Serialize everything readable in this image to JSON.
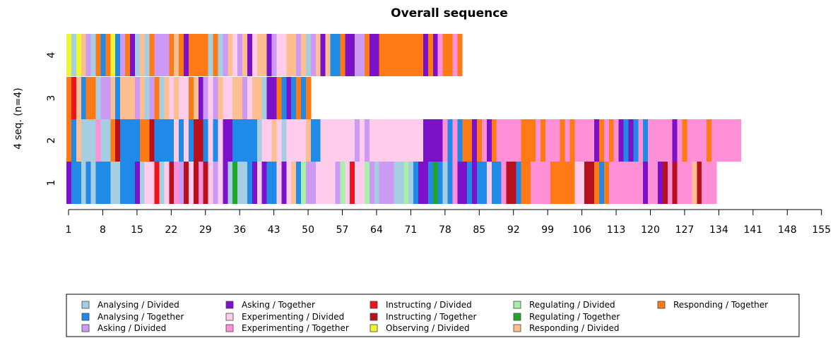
{
  "chart_data": {
    "type": "sequence_index_plot",
    "title": "Overall sequence",
    "ylabel": "4 seq. (n=4)",
    "xlabel": "",
    "y_tick_labels": [
      "1",
      "2",
      "3",
      "4"
    ],
    "x_tick_labels": [
      "1",
      "8",
      "15",
      "22",
      "29",
      "36",
      "43",
      "50",
      "57",
      "64",
      "71",
      "78",
      "85",
      "92",
      "99",
      "106",
      "113",
      "120",
      "127",
      "134",
      "141",
      "148",
      "155"
    ],
    "x_positions": 157,
    "states": [
      {
        "code": "AD",
        "label": "Analysing / Divided",
        "color": "#A6CEE3"
      },
      {
        "code": "AT",
        "label": "Analysing / Together",
        "color": "#1F8AE8"
      },
      {
        "code": "KD",
        "label": "Asking / Divided",
        "color": "#CC99F5"
      },
      {
        "code": "KT",
        "label": "Asking / Together",
        "color": "#7B12C9"
      },
      {
        "code": "ED",
        "label": "Experimenting / Divided",
        "color": "#FFCCEB"
      },
      {
        "code": "ET",
        "label": "Experimenting / Together",
        "color": "#FF8FD6"
      },
      {
        "code": "ID",
        "label": "Instructing / Divided",
        "color": "#F0141A"
      },
      {
        "code": "IT",
        "label": "Instructing / Together",
        "color": "#B8101C"
      },
      {
        "code": "OD",
        "label": "Observing / Divided",
        "color": "#EEF531"
      },
      {
        "code": "GD",
        "label": "Regulating / Divided",
        "color": "#A8F0A8"
      },
      {
        "code": "GT",
        "label": "Regulating / Together",
        "color": "#22A626"
      },
      {
        "code": "RD",
        "label": "Responding / Divided",
        "color": "#FDBF8F"
      },
      {
        "code": "RT",
        "label": "Responding / Together",
        "color": "#FF7A14"
      }
    ],
    "sequences": [
      {
        "name": "1",
        "runs": [
          [
            "KT",
            1
          ],
          [
            "AT",
            2
          ],
          [
            "AD",
            1
          ],
          [
            "AT",
            1
          ],
          [
            "AD",
            1
          ],
          [
            "AT",
            3
          ],
          [
            "AD",
            2
          ],
          [
            "AT",
            3
          ],
          [
            "KT",
            1
          ],
          [
            "AD",
            1
          ],
          [
            "ED",
            2
          ],
          [
            "ID",
            1
          ],
          [
            "AD",
            1
          ],
          [
            "ED",
            1
          ],
          [
            "IT",
            1
          ],
          [
            "ET",
            1
          ],
          [
            "KD",
            1
          ],
          [
            "IT",
            1
          ],
          [
            "ED",
            1
          ],
          [
            "IT",
            1
          ],
          [
            "ET",
            1
          ],
          [
            "IT",
            1
          ],
          [
            "ED",
            1
          ],
          [
            "KD",
            1
          ],
          [
            "ED",
            1
          ],
          [
            "KT",
            1
          ],
          [
            "AD",
            1
          ],
          [
            "GT",
            1
          ],
          [
            "AD",
            2
          ],
          [
            "AT",
            1
          ],
          [
            "KT",
            1
          ],
          [
            "ED",
            1
          ],
          [
            "KT",
            1
          ],
          [
            "AT",
            2
          ],
          [
            "ED",
            1
          ],
          [
            "KT",
            1
          ],
          [
            "ED",
            1
          ],
          [
            "RD",
            1
          ],
          [
            "AT",
            1
          ],
          [
            "GD",
            1
          ],
          [
            "KD",
            2
          ],
          [
            "ED",
            4
          ],
          [
            "KD",
            1
          ],
          [
            "GD",
            1
          ],
          [
            "ED",
            1
          ],
          [
            "ID",
            1
          ],
          [
            "ED",
            2
          ],
          [
            "GD",
            1
          ],
          [
            "KD",
            1
          ],
          [
            "AD",
            1
          ],
          [
            "KD",
            3
          ],
          [
            "AD",
            2
          ],
          [
            "GD",
            1
          ],
          [
            "AD",
            1
          ],
          [
            "AT",
            1
          ],
          [
            "KT",
            2
          ],
          [
            "AT",
            1
          ],
          [
            "GT",
            1
          ],
          [
            "AT",
            1
          ],
          [
            "AD",
            1
          ],
          [
            "AT",
            1
          ],
          [
            "ET",
            1
          ],
          [
            "KT",
            2
          ],
          [
            "AT",
            1
          ],
          [
            "KT",
            1
          ],
          [
            "AT",
            2
          ],
          [
            "ED",
            1
          ],
          [
            "AT",
            2
          ],
          [
            "ET",
            1
          ],
          [
            "IT",
            2
          ],
          [
            "AT",
            1
          ],
          [
            "RT",
            2
          ],
          [
            "ET",
            4
          ],
          [
            "RT",
            5
          ],
          [
            "ED",
            2
          ],
          [
            "IT",
            2
          ],
          [
            "RT",
            1
          ],
          [
            "AT",
            1
          ],
          [
            "RT",
            1
          ],
          [
            "ET",
            7
          ],
          [
            "KT",
            1
          ],
          [
            "ET",
            2
          ],
          [
            "KT",
            1
          ],
          [
            "IT",
            1
          ],
          [
            "ET",
            1
          ],
          [
            "IT",
            1
          ],
          [
            "ET",
            3
          ],
          [
            "RD",
            1
          ],
          [
            "IT",
            1
          ],
          [
            "ET",
            3
          ]
        ]
      },
      {
        "name": "2",
        "runs": [
          [
            "RT",
            1
          ],
          [
            "AT",
            1
          ],
          [
            "RD",
            1
          ],
          [
            "AD",
            3
          ],
          [
            "ET",
            1
          ],
          [
            "AD",
            2
          ],
          [
            "RT",
            1
          ],
          [
            "IT",
            1
          ],
          [
            "AT",
            4
          ],
          [
            "RT",
            2
          ],
          [
            "IT",
            1
          ],
          [
            "AT",
            4
          ],
          [
            "ED",
            1
          ],
          [
            "AT",
            1
          ],
          [
            "ED",
            1
          ],
          [
            "AT",
            1
          ],
          [
            "IT",
            2
          ],
          [
            "AT",
            1
          ],
          [
            "ED",
            1
          ],
          [
            "AT",
            1
          ],
          [
            "ED",
            1
          ],
          [
            "KT",
            2
          ],
          [
            "AT",
            5
          ],
          [
            "AD",
            1
          ],
          [
            "ED",
            2
          ],
          [
            "RD",
            1
          ],
          [
            "ED",
            1
          ],
          [
            "AD",
            1
          ],
          [
            "ED",
            4
          ],
          [
            "RD",
            1
          ],
          [
            "AT",
            2
          ],
          [
            "ED",
            7
          ],
          [
            "KD",
            1
          ],
          [
            "ED",
            1
          ],
          [
            "KD",
            1
          ],
          [
            "ED",
            11
          ],
          [
            "KT",
            4
          ],
          [
            "ET",
            1
          ],
          [
            "AT",
            1
          ],
          [
            "ET",
            1
          ],
          [
            "AT",
            1
          ],
          [
            "RT",
            2
          ],
          [
            "KT",
            1
          ],
          [
            "RT",
            1
          ],
          [
            "ET",
            1
          ],
          [
            "KT",
            1
          ],
          [
            "RT",
            1
          ],
          [
            "ET",
            5
          ],
          [
            "RT",
            3
          ],
          [
            "ET",
            1
          ],
          [
            "RT",
            1
          ],
          [
            "ET",
            3
          ],
          [
            "RT",
            1
          ],
          [
            "ET",
            1
          ],
          [
            "RT",
            1
          ],
          [
            "ET",
            4
          ],
          [
            "KT",
            1
          ],
          [
            "RT",
            1
          ],
          [
            "ET",
            1
          ],
          [
            "RT",
            1
          ],
          [
            "ET",
            1
          ],
          [
            "KT",
            1
          ],
          [
            "AT",
            1
          ],
          [
            "KT",
            1
          ],
          [
            "AT",
            1
          ],
          [
            "ET",
            1
          ],
          [
            "AT",
            1
          ],
          [
            "ET",
            5
          ],
          [
            "KT",
            1
          ],
          [
            "ET",
            1
          ],
          [
            "RT",
            1
          ],
          [
            "ET",
            4
          ],
          [
            "RT",
            1
          ],
          [
            "ET",
            6
          ]
        ]
      },
      {
        "name": "3",
        "runs": [
          [
            "RT",
            1
          ],
          [
            "ID",
            1
          ],
          [
            "RD",
            1
          ],
          [
            "AT",
            1
          ],
          [
            "RT",
            2
          ],
          [
            "AD",
            1
          ],
          [
            "KD",
            2
          ],
          [
            "RD",
            1
          ],
          [
            "AT",
            1
          ],
          [
            "RD",
            3
          ],
          [
            "KD",
            1
          ],
          [
            "RD",
            1
          ],
          [
            "AD",
            1
          ],
          [
            "KD",
            1
          ],
          [
            "RT",
            1
          ],
          [
            "AD",
            1
          ],
          [
            "RD",
            1
          ],
          [
            "ED",
            1
          ],
          [
            "RD",
            1
          ],
          [
            "ED",
            2
          ],
          [
            "RT",
            1
          ],
          [
            "RD",
            1
          ],
          [
            "KT",
            1
          ],
          [
            "KD",
            1
          ],
          [
            "ED",
            1
          ],
          [
            "KD",
            1
          ],
          [
            "RD",
            1
          ],
          [
            "ED",
            2
          ],
          [
            "RD",
            2
          ],
          [
            "KD",
            1
          ],
          [
            "ED",
            1
          ],
          [
            "RD",
            2
          ],
          [
            "AD",
            1
          ],
          [
            "KT",
            2
          ],
          [
            "RT",
            1
          ],
          [
            "AT",
            1
          ],
          [
            "KT",
            1
          ],
          [
            "AT",
            1
          ],
          [
            "RT",
            1
          ],
          [
            "AT",
            1
          ],
          [
            "RT",
            1
          ]
        ]
      },
      {
        "name": "4",
        "runs": [
          [
            "OD",
            1
          ],
          [
            "AD",
            1
          ],
          [
            "OD",
            1
          ],
          [
            "RD",
            1
          ],
          [
            "KD",
            1
          ],
          [
            "AD",
            1
          ],
          [
            "RT",
            1
          ],
          [
            "AT",
            1
          ],
          [
            "RT",
            1
          ],
          [
            "OD",
            1
          ],
          [
            "AT",
            1
          ],
          [
            "KD",
            1
          ],
          [
            "RT",
            1
          ],
          [
            "KT",
            1
          ],
          [
            "AD",
            1
          ],
          [
            "RD",
            1
          ],
          [
            "AD",
            1
          ],
          [
            "RT",
            1
          ],
          [
            "KD",
            3
          ],
          [
            "RT",
            1
          ],
          [
            "RD",
            1
          ],
          [
            "RT",
            1
          ],
          [
            "KT",
            1
          ],
          [
            "RT",
            4
          ],
          [
            "AD",
            1
          ],
          [
            "RT",
            1
          ],
          [
            "AD",
            1
          ],
          [
            "KD",
            1
          ],
          [
            "RD",
            1
          ],
          [
            "ED",
            1
          ],
          [
            "KD",
            1
          ],
          [
            "RD",
            1
          ],
          [
            "KT",
            1
          ],
          [
            "ED",
            1
          ],
          [
            "RD",
            2
          ],
          [
            "KT",
            1
          ],
          [
            "KD",
            1
          ],
          [
            "ED",
            2
          ],
          [
            "RD",
            2
          ],
          [
            "KD",
            1
          ],
          [
            "RD",
            1
          ],
          [
            "AD",
            1
          ],
          [
            "KD",
            1
          ],
          [
            "RD",
            1
          ],
          [
            "KT",
            1
          ],
          [
            "RD",
            1
          ],
          [
            "AT",
            2
          ],
          [
            "RT",
            1
          ],
          [
            "KT",
            2
          ],
          [
            "KD",
            2
          ],
          [
            "RT",
            1
          ],
          [
            "KT",
            2
          ],
          [
            "RT",
            9
          ],
          [
            "KT",
            1
          ],
          [
            "RT",
            1
          ],
          [
            "KT",
            1
          ],
          [
            "ET",
            1
          ],
          [
            "RT",
            2
          ],
          [
            "ET",
            1
          ],
          [
            "RT",
            1
          ]
        ]
      }
    ],
    "legend_placement": "bottom",
    "grid": false
  }
}
